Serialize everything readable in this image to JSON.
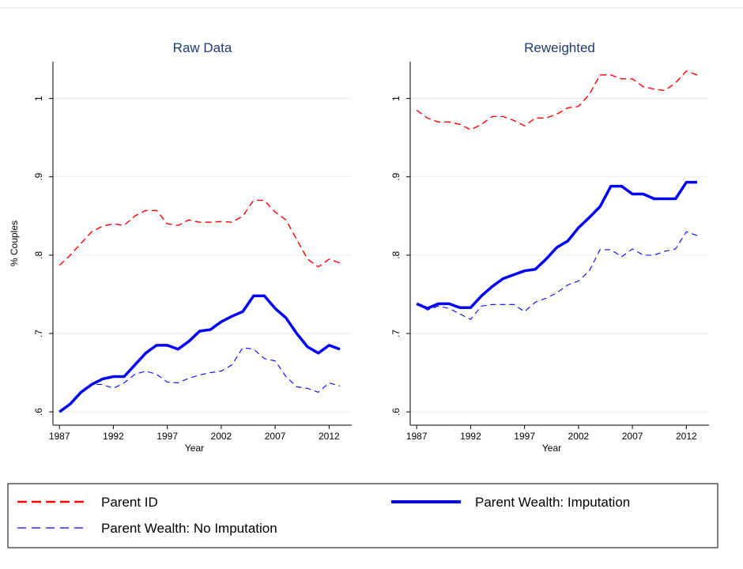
{
  "chart_data": [
    {
      "type": "line",
      "title": "Raw Data",
      "y_label": "% Couples",
      "x_label": "Year",
      "x": [
        1987,
        1988,
        1989,
        1990,
        1991,
        1992,
        1993,
        1994,
        1995,
        1996,
        1997,
        1998,
        1999,
        2000,
        2001,
        2002,
        2003,
        2004,
        2005,
        2006,
        2007,
        2008,
        2009,
        2010,
        2011,
        2012,
        2013
      ],
      "xlim": [
        1986.4,
        2014.1
      ],
      "xticks": [
        1987,
        1992,
        1997,
        2002,
        2007,
        2012
      ],
      "ylim": [
        0.583,
        1.047
      ],
      "yticks": [
        {
          "value": 0.6,
          "label": ".6"
        },
        {
          "value": 0.7,
          "label": ".7"
        },
        {
          "value": 0.8,
          "label": ".8"
        },
        {
          "value": 0.9,
          "label": ".9"
        },
        1
      ],
      "grid": true,
      "series": [
        {
          "name": "Parent ID",
          "color": "#ff0000",
          "style": "dashed",
          "values": [
            0.787,
            0.8,
            0.815,
            0.83,
            0.837,
            0.84,
            0.838,
            0.85,
            0.857,
            0.857,
            0.84,
            0.838,
            0.845,
            0.842,
            0.842,
            0.843,
            0.842,
            0.85,
            0.87,
            0.87,
            0.855,
            0.845,
            0.82,
            0.795,
            0.785,
            0.795,
            0.79
          ]
        },
        {
          "name": "Parent Wealth: Imputation",
          "color": "#0000ff",
          "style": "solid",
          "values": [
            0.6,
            0.61,
            0.625,
            0.635,
            0.642,
            0.645,
            0.645,
            0.66,
            0.675,
            0.685,
            0.685,
            0.68,
            0.69,
            0.703,
            0.705,
            0.715,
            0.722,
            0.728,
            0.748,
            0.748,
            0.732,
            0.72,
            0.7,
            0.683,
            0.675,
            0.685,
            0.68
          ]
        },
        {
          "name": "Parent Wealth: No Imputation",
          "color": "#0000ff",
          "style": "dashed",
          "values": [
            0.6,
            0.61,
            0.625,
            0.635,
            0.635,
            0.63,
            0.637,
            0.648,
            0.652,
            0.648,
            0.638,
            0.637,
            0.643,
            0.647,
            0.65,
            0.652,
            0.66,
            0.682,
            0.68,
            0.668,
            0.665,
            0.645,
            0.632,
            0.63,
            0.625,
            0.637,
            0.633
          ]
        }
      ]
    },
    {
      "type": "line",
      "title": "Reweighted",
      "x_label": "Year",
      "x": [
        1987,
        1988,
        1989,
        1990,
        1991,
        1992,
        1993,
        1994,
        1995,
        1996,
        1997,
        1998,
        1999,
        2000,
        2001,
        2002,
        2003,
        2004,
        2005,
        2006,
        2007,
        2008,
        2009,
        2010,
        2011,
        2012,
        2013
      ],
      "xlim": [
        1986.4,
        2014.1
      ],
      "xticks": [
        1987,
        1992,
        1997,
        2002,
        2007,
        2012
      ],
      "ylim": [
        0.583,
        1.047
      ],
      "yticks": [
        {
          "value": 0.6,
          "label": ".6"
        },
        {
          "value": 0.7,
          "label": ".7"
        },
        {
          "value": 0.8,
          "label": ".8"
        },
        {
          "value": 0.9,
          "label": ".9"
        },
        1
      ],
      "grid": true,
      "series": [
        {
          "color": "#ff0000",
          "style": "dashed",
          "values": [
            0.985,
            0.975,
            0.97,
            0.97,
            0.967,
            0.96,
            0.967,
            0.977,
            0.977,
            0.972,
            0.965,
            0.975,
            0.975,
            0.98,
            0.988,
            0.99,
            1.005,
            1.03,
            1.03,
            1.025,
            1.025,
            1.015,
            1.012,
            1.01,
            1.02,
            1.035,
            1.03
          ]
        },
        {
          "color": "#0000ff",
          "style": "solid",
          "values": [
            0.738,
            0.732,
            0.738,
            0.738,
            0.733,
            0.733,
            0.748,
            0.76,
            0.77,
            0.775,
            0.78,
            0.782,
            0.795,
            0.81,
            0.818,
            0.835,
            0.848,
            0.862,
            0.888,
            0.888,
            0.878,
            0.878,
            0.872,
            0.872,
            0.872,
            0.893,
            0.893
          ]
        },
        {
          "color": "#0000ff",
          "style": "dashed",
          "values": [
            0.738,
            0.73,
            0.735,
            0.732,
            0.725,
            0.718,
            0.735,
            0.737,
            0.737,
            0.737,
            0.728,
            0.74,
            0.745,
            0.752,
            0.762,
            0.767,
            0.78,
            0.807,
            0.807,
            0.798,
            0.808,
            0.8,
            0.8,
            0.805,
            0.808,
            0.83,
            0.825
          ]
        }
      ]
    }
  ]
}
